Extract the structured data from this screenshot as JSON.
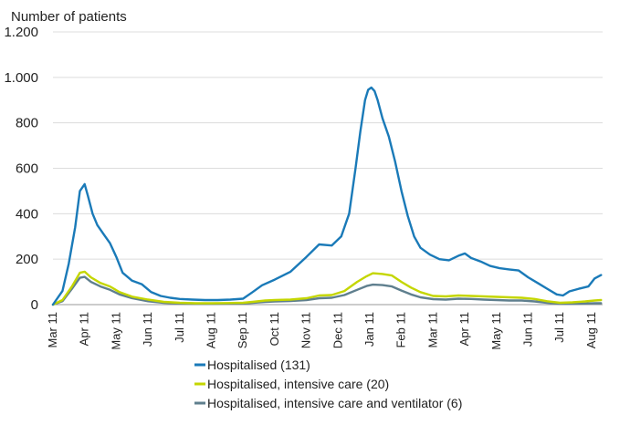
{
  "chart_data": {
    "type": "line",
    "title": "",
    "ylabel": "Number of patients",
    "xlabel": "",
    "ylim": [
      0,
      1200
    ],
    "y_ticks": [
      {
        "value": 0,
        "label": "0"
      },
      {
        "value": 200,
        "label": "200"
      },
      {
        "value": 400,
        "label": "400"
      },
      {
        "value": 600,
        "label": "600"
      },
      {
        "value": 800,
        "label": "800"
      },
      {
        "value": 1000,
        "label": "1.000"
      },
      {
        "value": 1200,
        "label": "1.200"
      }
    ],
    "x_ticks": [
      "Mar 11",
      "Apr 11",
      "May 11",
      "Jun 11",
      "Jul 11",
      "Aug 11",
      "Sep 11",
      "Oct 11",
      "Nov 11",
      "Dec 11",
      "Jan 11",
      "Feb 11",
      "Mar 11",
      "Apr 11",
      "May 11",
      "Jun 11",
      "Jul 11",
      "Aug 11"
    ],
    "grid": true,
    "legend_position": "bottom",
    "series": [
      {
        "name": "Hospitalised (131)",
        "color": "#1a7ab8",
        "points": [
          [
            0,
            0
          ],
          [
            0.3,
            60
          ],
          [
            0.5,
            180
          ],
          [
            0.7,
            340
          ],
          [
            0.85,
            500
          ],
          [
            1.0,
            530
          ],
          [
            1.1,
            480
          ],
          [
            1.25,
            400
          ],
          [
            1.4,
            350
          ],
          [
            1.6,
            310
          ],
          [
            1.8,
            270
          ],
          [
            2.0,
            210
          ],
          [
            2.2,
            140
          ],
          [
            2.5,
            105
          ],
          [
            2.8,
            90
          ],
          [
            3.1,
            55
          ],
          [
            3.4,
            38
          ],
          [
            3.7,
            30
          ],
          [
            4.0,
            25
          ],
          [
            4.4,
            22
          ],
          [
            4.8,
            20
          ],
          [
            5.2,
            20
          ],
          [
            5.6,
            22
          ],
          [
            6.0,
            26
          ],
          [
            6.3,
            55
          ],
          [
            6.6,
            85
          ],
          [
            7.0,
            110
          ],
          [
            7.5,
            145
          ],
          [
            8.0,
            210
          ],
          [
            8.4,
            265
          ],
          [
            8.8,
            260
          ],
          [
            9.1,
            300
          ],
          [
            9.35,
            400
          ],
          [
            9.55,
            600
          ],
          [
            9.7,
            760
          ],
          [
            9.85,
            900
          ],
          [
            9.95,
            945
          ],
          [
            10.05,
            955
          ],
          [
            10.15,
            940
          ],
          [
            10.25,
            900
          ],
          [
            10.4,
            820
          ],
          [
            10.6,
            740
          ],
          [
            10.8,
            630
          ],
          [
            11.0,
            500
          ],
          [
            11.2,
            390
          ],
          [
            11.4,
            300
          ],
          [
            11.6,
            250
          ],
          [
            11.9,
            220
          ],
          [
            12.2,
            200
          ],
          [
            12.5,
            195
          ],
          [
            12.8,
            215
          ],
          [
            13.0,
            225
          ],
          [
            13.2,
            205
          ],
          [
            13.5,
            190
          ],
          [
            13.8,
            170
          ],
          [
            14.1,
            160
          ],
          [
            14.4,
            155
          ],
          [
            14.7,
            150
          ],
          [
            15.0,
            120
          ],
          [
            15.3,
            95
          ],
          [
            15.6,
            70
          ],
          [
            15.9,
            45
          ],
          [
            16.1,
            40
          ],
          [
            16.3,
            58
          ],
          [
            16.6,
            70
          ],
          [
            16.9,
            80
          ],
          [
            17.1,
            115
          ],
          [
            17.3,
            130
          ]
        ]
      },
      {
        "name": "Hospitalised, intensive care (20)",
        "color": "#c4d600",
        "points": [
          [
            0,
            0
          ],
          [
            0.3,
            20
          ],
          [
            0.6,
            80
          ],
          [
            0.85,
            140
          ],
          [
            1.0,
            145
          ],
          [
            1.2,
            120
          ],
          [
            1.5,
            95
          ],
          [
            1.8,
            80
          ],
          [
            2.1,
            55
          ],
          [
            2.5,
            35
          ],
          [
            3.0,
            22
          ],
          [
            3.5,
            12
          ],
          [
            4.0,
            8
          ],
          [
            4.5,
            6
          ],
          [
            5.0,
            6
          ],
          [
            5.5,
            7
          ],
          [
            6.0,
            8
          ],
          [
            6.3,
            12
          ],
          [
            6.7,
            18
          ],
          [
            7.0,
            20
          ],
          [
            7.5,
            22
          ],
          [
            8.0,
            28
          ],
          [
            8.4,
            40
          ],
          [
            8.8,
            42
          ],
          [
            9.2,
            60
          ],
          [
            9.6,
            100
          ],
          [
            9.9,
            125
          ],
          [
            10.1,
            138
          ],
          [
            10.4,
            135
          ],
          [
            10.7,
            128
          ],
          [
            11.0,
            100
          ],
          [
            11.3,
            75
          ],
          [
            11.6,
            55
          ],
          [
            12.0,
            38
          ],
          [
            12.4,
            36
          ],
          [
            12.8,
            40
          ],
          [
            13.2,
            38
          ],
          [
            13.6,
            36
          ],
          [
            14.0,
            34
          ],
          [
            14.4,
            32
          ],
          [
            14.8,
            30
          ],
          [
            15.2,
            25
          ],
          [
            15.6,
            15
          ],
          [
            16.0,
            8
          ],
          [
            16.4,
            10
          ],
          [
            16.8,
            14
          ],
          [
            17.1,
            18
          ],
          [
            17.3,
            20
          ]
        ]
      },
      {
        "name": "Hospitalised, intensive care and ventilator (6)",
        "color": "#5f7f8e",
        "points": [
          [
            0,
            0
          ],
          [
            0.3,
            15
          ],
          [
            0.6,
            70
          ],
          [
            0.85,
            118
          ],
          [
            1.0,
            122
          ],
          [
            1.2,
            100
          ],
          [
            1.5,
            80
          ],
          [
            1.8,
            65
          ],
          [
            2.1,
            45
          ],
          [
            2.5,
            28
          ],
          [
            3.0,
            15
          ],
          [
            3.5,
            8
          ],
          [
            4.0,
            5
          ],
          [
            4.5,
            4
          ],
          [
            5.0,
            4
          ],
          [
            5.5,
            5
          ],
          [
            6.0,
            5
          ],
          [
            6.3,
            8
          ],
          [
            6.7,
            12
          ],
          [
            7.0,
            14
          ],
          [
            7.5,
            16
          ],
          [
            8.0,
            20
          ],
          [
            8.4,
            28
          ],
          [
            8.8,
            30
          ],
          [
            9.2,
            42
          ],
          [
            9.6,
            65
          ],
          [
            9.9,
            82
          ],
          [
            10.1,
            88
          ],
          [
            10.4,
            86
          ],
          [
            10.7,
            80
          ],
          [
            11.0,
            62
          ],
          [
            11.3,
            45
          ],
          [
            11.6,
            32
          ],
          [
            12.0,
            24
          ],
          [
            12.4,
            22
          ],
          [
            12.8,
            26
          ],
          [
            13.2,
            25
          ],
          [
            13.6,
            22
          ],
          [
            14.0,
            20
          ],
          [
            14.4,
            18
          ],
          [
            14.8,
            18
          ],
          [
            15.2,
            14
          ],
          [
            15.6,
            8
          ],
          [
            16.0,
            4
          ],
          [
            16.4,
            4
          ],
          [
            16.8,
            5
          ],
          [
            17.1,
            6
          ],
          [
            17.3,
            6
          ]
        ]
      }
    ]
  }
}
